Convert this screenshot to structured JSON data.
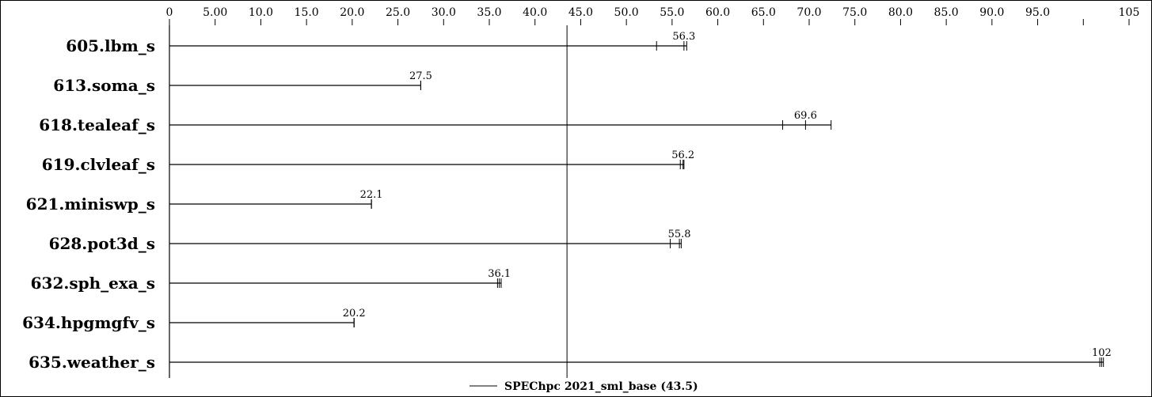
{
  "chart_data": {
    "type": "bar",
    "title": "",
    "xlabel": "",
    "ylabel": "",
    "xlim": [
      0,
      105
    ],
    "ticks": [
      0,
      5,
      10,
      15,
      20,
      25,
      30,
      35,
      40,
      45,
      50,
      55,
      60,
      65,
      70,
      75,
      80,
      85,
      90,
      95,
      100,
      105
    ],
    "tick_labels": [
      "0",
      "5.00",
      "10.0",
      "15.0",
      "20.0",
      "25.0",
      "30.0",
      "35.0",
      "40.0",
      "45.0",
      "50.0",
      "55.0",
      "60.0",
      "65.0",
      "70.0",
      "75.0",
      "80.0",
      "85.0",
      "90.0",
      "95.0",
      "",
      "105"
    ],
    "categories": [
      "605.lbm_s",
      "613.soma_s",
      "618.tealeaf_s",
      "619.clvleaf_s",
      "621.miniswp_s",
      "628.pot3d_s",
      "632.sph_exa_s",
      "634.hpgmgfv_s",
      "635.weather_s"
    ],
    "series": [
      {
        "name": "SPEChpc 2021_sml_base (43.5)",
        "values": [
          56.3,
          27.5,
          69.6,
          56.2,
          22.1,
          55.8,
          36.1,
          20.2,
          102
        ],
        "value_labels": [
          "56.3",
          "27.5",
          "69.6",
          "56.2",
          "22.1",
          "55.8",
          "36.1",
          "20.2",
          "102"
        ],
        "ranges": [
          [
            53.3,
            56.6
          ],
          [
            27.5,
            27.5
          ],
          [
            67.1,
            72.4
          ],
          [
            55.9,
            56.3
          ],
          [
            22.1,
            22.1
          ],
          [
            54.8,
            56.0
          ],
          [
            35.9,
            36.3
          ],
          [
            20.2,
            20.2
          ],
          [
            101.8,
            102.2
          ]
        ]
      }
    ],
    "reference_line": {
      "value": 43.5
    },
    "legend_position": "bottom-center",
    "grid": false
  }
}
